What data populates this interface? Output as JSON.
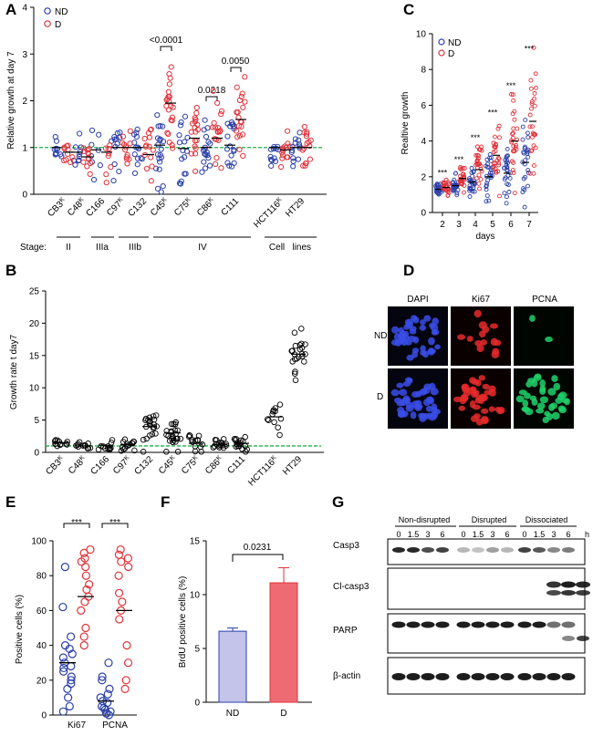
{
  "panels": {
    "A": "A",
    "B": "B",
    "C": "C",
    "D": "D",
    "E": "E",
    "F": "F",
    "G": "G"
  },
  "colors": {
    "nd": "#2b3fa8",
    "d": "#e0323a",
    "ref": "#22b04a",
    "barND": "#c4c4ea",
    "barD": "#ef6b73"
  },
  "chart_data": [
    {
      "type": "scatter",
      "id": "A",
      "ylabel": "Relative growth at day 7",
      "ylim": [
        0,
        4
      ],
      "yticks": [
        0,
        1,
        2,
        3,
        4
      ],
      "legend": [
        {
          "name": "ND"
        },
        {
          "name": "D"
        }
      ],
      "categories": [
        "CB3",
        "C48",
        "C166",
        "C97",
        "C132",
        "C45",
        "C75",
        "C86",
        "C111",
        "HCT116",
        "HT29"
      ],
      "cat_super": [
        "K",
        "K",
        "",
        "K",
        "",
        "K",
        "K",
        "K",
        "",
        "K",
        ""
      ],
      "stage_label": "Stage:",
      "stage_groups": [
        {
          "label": "II"
        },
        {
          "label": "IIIa"
        },
        {
          "label": "IIIb"
        },
        {
          "label": "IV"
        },
        {
          "label": "Cell   lines"
        }
      ],
      "annotations": [
        {
          "text": "<0.0001"
        },
        {
          "text": "0.0218"
        },
        {
          "text": "0.0050"
        }
      ],
      "reference_y": 1,
      "series": [
        {
          "name": "ND",
          "means": [
            1.0,
            0.9,
            0.95,
            1.0,
            1.0,
            1.05,
            0.98,
            1.0,
            1.05,
            1.0,
            1.0
          ],
          "spread": [
            0.3,
            0.3,
            0.65,
            0.45,
            0.5,
            0.7,
            0.55,
            0.6,
            0.55,
            0.3,
            0.35
          ],
          "counts": [
            10,
            10,
            8,
            12,
            14,
            20,
            16,
            18,
            18,
            12,
            14
          ]
        },
        {
          "name": "D",
          "means": [
            0.9,
            0.8,
            0.9,
            1.0,
            0.85,
            1.95,
            1.2,
            1.2,
            1.6,
            0.95,
            1.0
          ],
          "spread": [
            0.35,
            0.4,
            0.5,
            0.5,
            0.55,
            0.75,
            0.7,
            0.7,
            0.75,
            0.35,
            0.4
          ],
          "counts": [
            10,
            12,
            8,
            12,
            14,
            22,
            18,
            18,
            20,
            14,
            16
          ]
        }
      ]
    },
    {
      "type": "scatter",
      "id": "B",
      "ylabel": "Growth rate t day7",
      "ylim": [
        0,
        25
      ],
      "yticks": [
        0,
        5,
        10,
        15,
        20,
        25
      ],
      "categories": [
        "CB3",
        "C48",
        "C166",
        "C97",
        "C132",
        "C45",
        "C75",
        "C86",
        "C111",
        "HCT116",
        "HT29"
      ],
      "cat_super": [
        "K",
        "K",
        "",
        "K",
        "",
        "K",
        "K",
        "K",
        "",
        "K",
        ""
      ],
      "reference_y": 1,
      "means": [
        1.5,
        1.0,
        1.1,
        1.2,
        4.0,
        3.0,
        1.4,
        1.2,
        1.4,
        5.5,
        15.2
      ],
      "spread": [
        0.8,
        0.7,
        1.0,
        0.8,
        2.4,
        2.6,
        1.2,
        0.8,
        1.0,
        1.8,
        3.3
      ],
      "counts": [
        12,
        12,
        12,
        14,
        22,
        24,
        14,
        16,
        16,
        12,
        22
      ]
    },
    {
      "type": "scatter",
      "id": "C",
      "ylabel": "Realtive growth",
      "xlabel": "days",
      "ylim": [
        0,
        10
      ],
      "yticks": [
        0,
        2,
        4,
        6,
        8,
        10
      ],
      "categories": [
        "2",
        "3",
        "4",
        "5",
        "6",
        "7"
      ],
      "legend": [
        {
          "name": "ND"
        },
        {
          "name": "D"
        }
      ],
      "sig": "***",
      "series": [
        {
          "name": "ND",
          "means": [
            1.3,
            1.5,
            1.7,
            2.0,
            2.2,
            2.8
          ],
          "spread": [
            0.25,
            0.45,
            0.6,
            0.9,
            1.2,
            1.8
          ]
        },
        {
          "name": "D",
          "means": [
            1.4,
            1.9,
            2.4,
            3.2,
            4.0,
            5.1
          ],
          "spread": [
            0.3,
            0.5,
            1.1,
            1.6,
            2.2,
            3.0
          ]
        }
      ]
    },
    {
      "type": "scatter",
      "id": "E",
      "ylabel": "Positive cells (%)",
      "ylim": [
        0,
        100
      ],
      "yticks": [
        0,
        20,
        40,
        60,
        80,
        100
      ],
      "categories": [
        "Ki67",
        "PCNA"
      ],
      "sig": "***",
      "series": [
        {
          "name": "ND",
          "means": [
            30,
            8
          ],
          "values": [
            [
              85,
              62,
              45,
              40,
              38,
              35,
              33,
              30,
              28,
              27,
              25,
              22,
              20,
              18,
              15,
              10,
              5,
              2
            ],
            [
              30,
              22,
              20,
              15,
              12,
              10,
              8,
              7,
              5,
              4,
              3,
              2,
              1,
              1,
              0
            ]
          ]
        },
        {
          "name": "D",
          "means": [
            68,
            60
          ],
          "values": [
            [
              95,
              93,
              90,
              88,
              85,
              80,
              75,
              72,
              68,
              65,
              60,
              50,
              45,
              40
            ],
            [
              95,
              92,
              90,
              88,
              85,
              80,
              70,
              65,
              60,
              55,
              40,
              30,
              20,
              15
            ]
          ]
        }
      ]
    },
    {
      "type": "bar",
      "id": "F",
      "ylabel": "BrdU positive cells (%)",
      "ylim": [
        0,
        15
      ],
      "yticks": [
        0,
        5,
        10,
        15
      ],
      "categories": [
        "ND",
        "D"
      ],
      "values": [
        6.6,
        11.1
      ],
      "errors": [
        0.3,
        1.4
      ],
      "pvalue": "0.0231"
    }
  ],
  "microscopy": {
    "columns": [
      "DAPI",
      "Ki67",
      "PCNA"
    ],
    "rows": [
      "ND",
      "D"
    ]
  },
  "western": {
    "groups": [
      "Non-disrupted",
      "Disrupted",
      "Dissociated"
    ],
    "timepoints": [
      "0",
      "1.5",
      "3",
      "6"
    ],
    "unit": "h",
    "proteins": [
      "Casp3",
      "Cl-casp3",
      "PARP",
      "β-actin"
    ]
  }
}
